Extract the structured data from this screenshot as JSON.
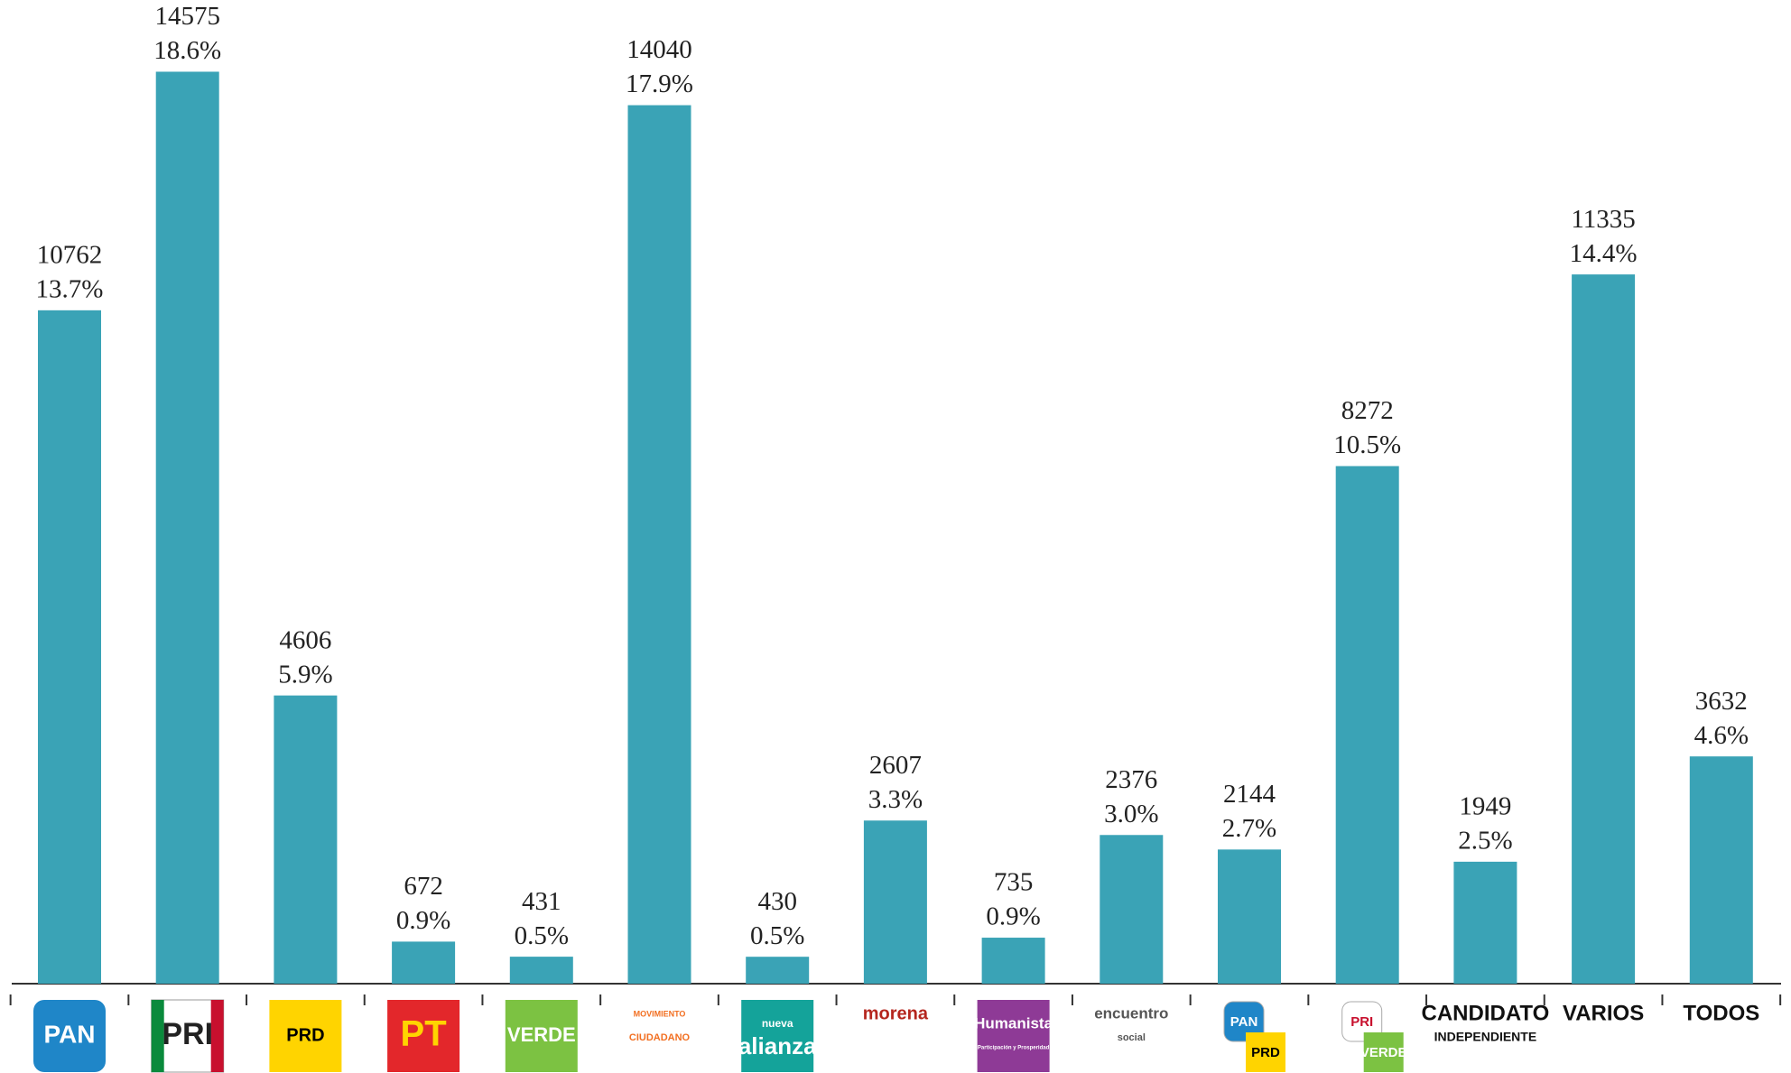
{
  "chart_data": {
    "type": "bar",
    "categories": [
      "PAN",
      "PRI",
      "PRD",
      "PT",
      "VERDE",
      [
        "MOVIMIENTO",
        "CIUDADANO"
      ],
      [
        "nueva",
        "alianza"
      ],
      "morena",
      [
        "Humanista",
        "Participación y Prosperidad"
      ],
      [
        "encuentro",
        "social"
      ],
      [
        "PAN",
        "PRD"
      ],
      [
        "PRI",
        "VERDE"
      ],
      [
        "CANDIDATO",
        "INDEPENDIENTE"
      ],
      "VARIOS",
      "TODOS"
    ],
    "values": [
      10762,
      14575,
      4606,
      672,
      431,
      14040,
      430,
      2607,
      735,
      2376,
      2144,
      8272,
      1949,
      11335,
      3632
    ],
    "percentages": [
      "13.7%",
      "18.6%",
      "5.9%",
      "0.9%",
      "0.5%",
      "17.9%",
      "0.5%",
      "3.3%",
      "0.9%",
      "3.0%",
      "2.7%",
      "10.5%",
      "2.5%",
      "14.4%",
      "4.6%"
    ],
    "color": "#3aa3b6",
    "ylim": [
      0,
      15000
    ]
  }
}
